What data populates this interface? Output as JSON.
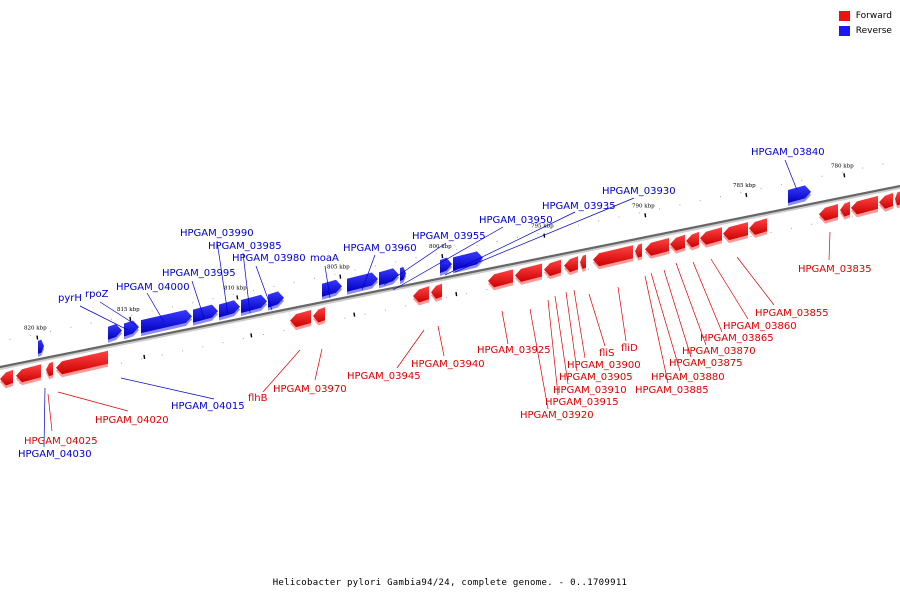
{
  "legend": {
    "forward_label": "Forward",
    "reverse_label": "Reverse",
    "forward_color": "#ee1111",
    "reverse_color": "#1a1aee"
  },
  "caption": "Helicobacter pylori Gambia94/24, complete genome. - 0..1709911",
  "colors": {
    "forward_top": "#ff4444",
    "forward_bottom": "#cc0000",
    "reverse_top": "#3a3aff",
    "reverse_bottom": "#0000c0"
  },
  "ticks": [
    "820 kbp",
    "815 kbp",
    "810 kbp",
    "805 kbp",
    "800 kbp",
    "795 kbp",
    "790 kbp",
    "785 kbp",
    "780 kbp"
  ],
  "forward_labels": [
    "HPGAM_04025",
    "HPGAM_04020",
    "flhB",
    "HPGAM_03970",
    "HPGAM_03945",
    "HPGAM_03940",
    "HPGAM_03925",
    "HPGAM_03920",
    "HPGAM_03915",
    "HPGAM_03910",
    "HPGAM_03905",
    "HPGAM_03900",
    "fliS",
    "fliD",
    "HPGAM_03885",
    "HPGAM_03880",
    "HPGAM_03875",
    "HPGAM_03870",
    "HPGAM_03865",
    "HPGAM_03860",
    "HPGAM_03855",
    "HPGAM_03835"
  ],
  "reverse_labels": [
    "HPGAM_04030",
    "HPGAM_04015",
    "pyrH",
    "rpoZ",
    "HPGAM_04000",
    "HPGAM_03995",
    "HPGAM_03990",
    "HPGAM_03985",
    "HPGAM_03980",
    "moaA",
    "HPGAM_03960",
    "HPGAM_03955",
    "HPGAM_03950",
    "HPGAM_03935",
    "HPGAM_03930",
    "HPGAM_03840"
  ]
}
